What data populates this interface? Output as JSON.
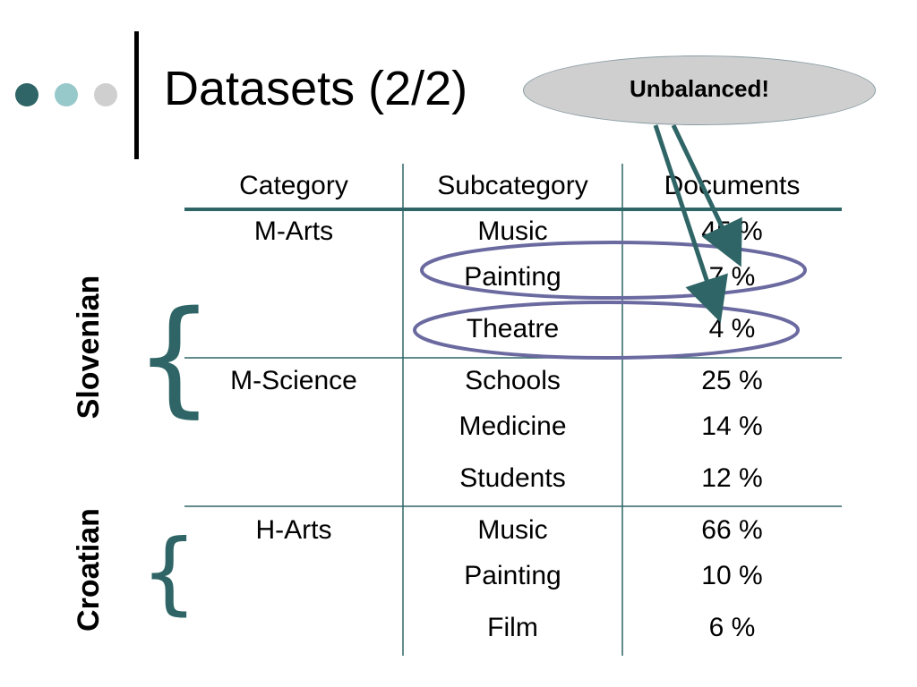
{
  "slide": {
    "title": "Datasets (2/2)"
  },
  "callout": {
    "text": "Unbalanced!"
  },
  "table": {
    "headers": [
      "Category",
      "Subcategory",
      "Documents"
    ],
    "rows": [
      {
        "category": "M-Arts",
        "subcategory": "Music",
        "documents": "45 %"
      },
      {
        "category": "",
        "subcategory": "Painting",
        "documents": "7 %"
      },
      {
        "category": "",
        "subcategory": "Theatre",
        "documents": "4 %"
      },
      {
        "category": "M-Science",
        "subcategory": "Schools",
        "documents": "25 %"
      },
      {
        "category": "",
        "subcategory": "Medicine",
        "documents": "14 %"
      },
      {
        "category": "",
        "subcategory": "Students",
        "documents": "12 %"
      },
      {
        "category": "H-Arts",
        "subcategory": "Music",
        "documents": "66 %"
      },
      {
        "category": "",
        "subcategory": "Painting",
        "documents": "10 %"
      },
      {
        "category": "",
        "subcategory": "Film",
        "documents": "6 %"
      }
    ]
  },
  "groups": [
    {
      "label": "Slovenian",
      "brace": "{"
    },
    {
      "label": "Croatian",
      "brace": "{"
    }
  ],
  "colors": {
    "accent": "#2f6566",
    "dot_light": "#98c9ca",
    "dot_gray": "#cfcfcf",
    "highlight_ellipse": "#6b6aa0",
    "callout_fill": "#cfcfcf"
  }
}
